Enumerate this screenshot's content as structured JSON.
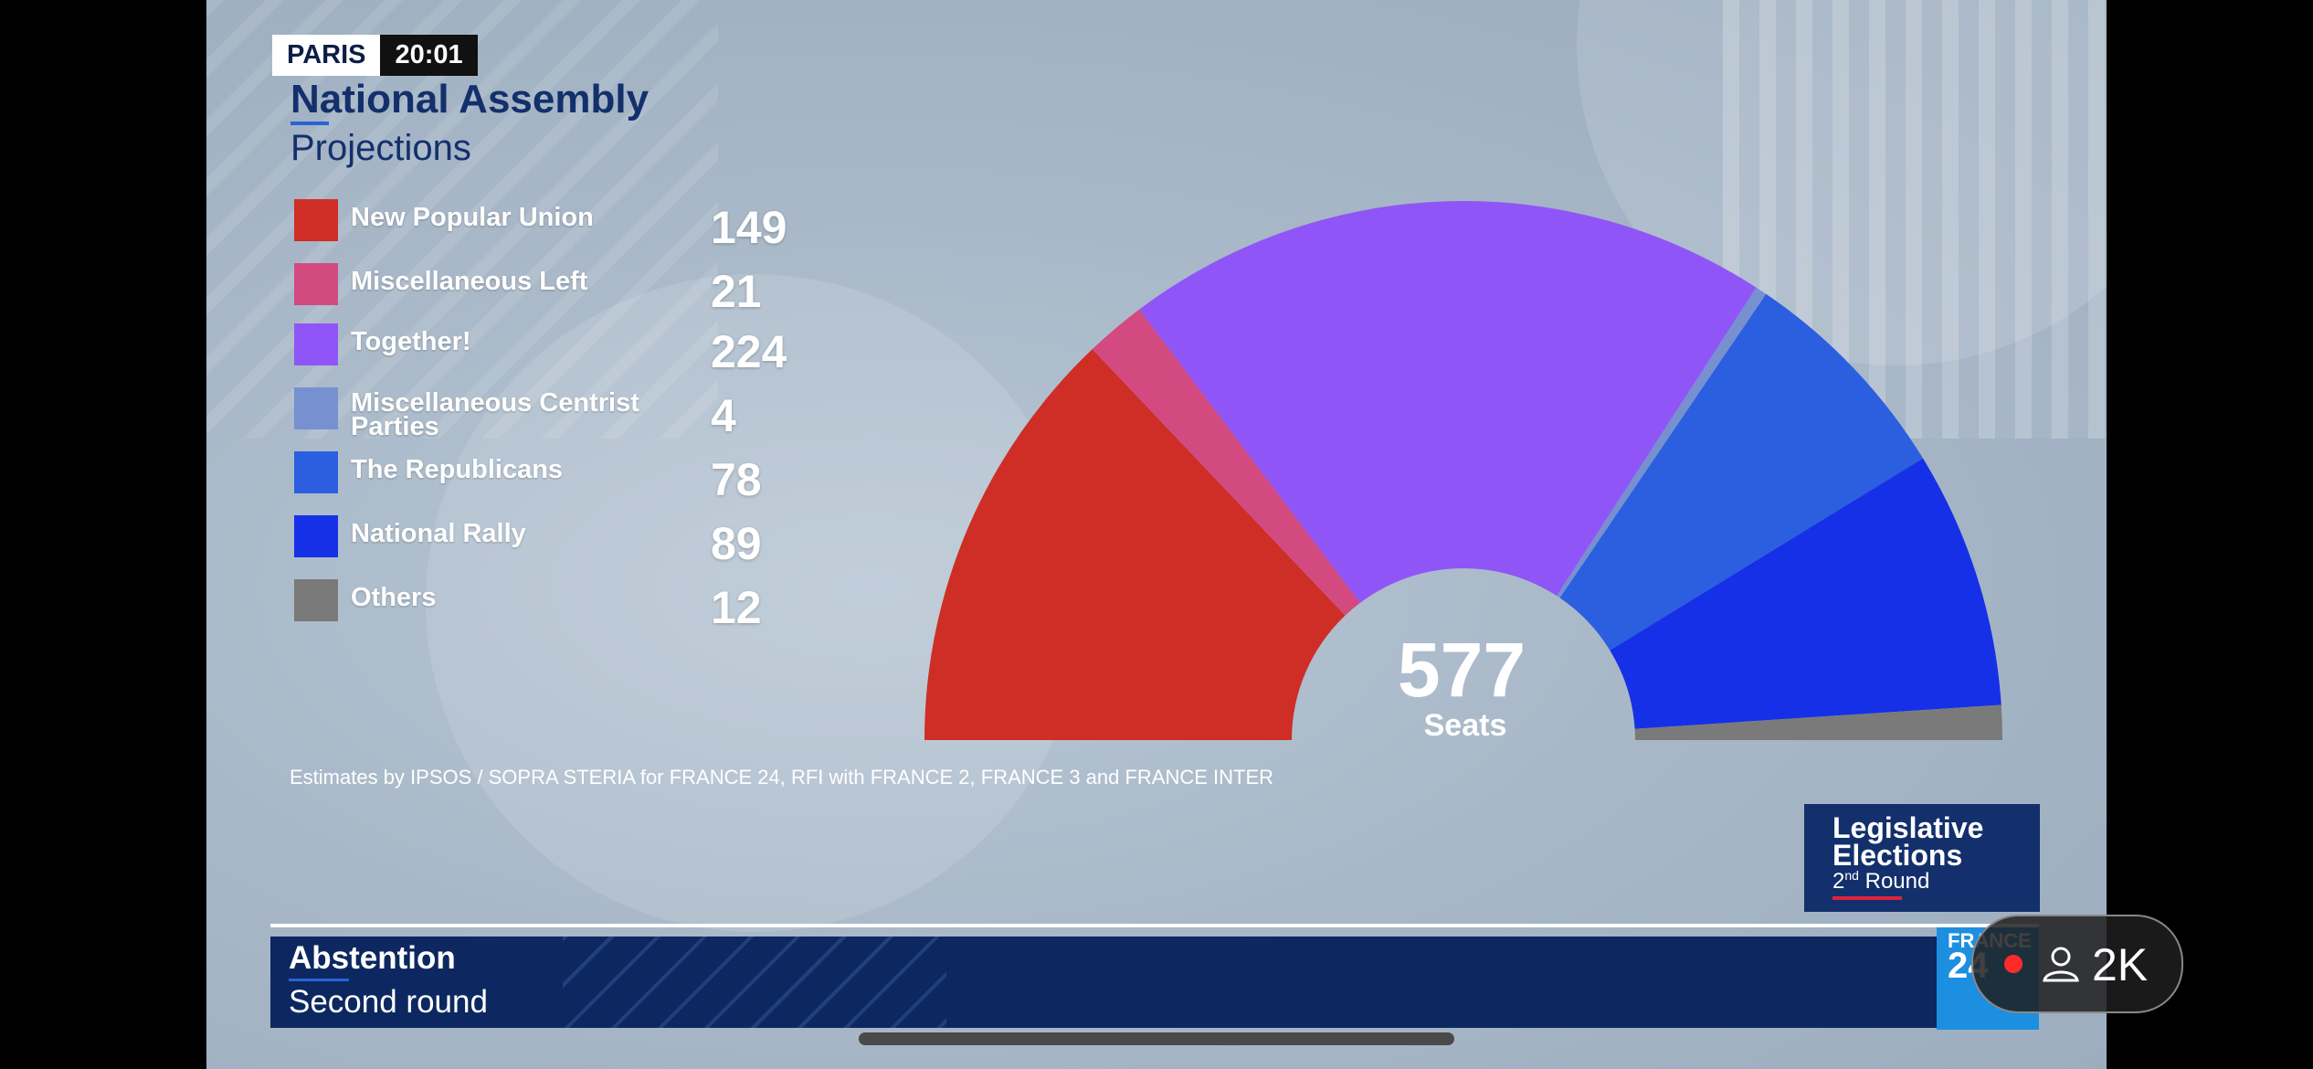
{
  "tag": {
    "city": "PARIS",
    "time": "20:01"
  },
  "header": {
    "title": "National Assembly",
    "subtitle": "Projections"
  },
  "chart_data": {
    "type": "pie",
    "shape": "semicircle",
    "title": "National Assembly",
    "subtitle": "Projections",
    "total_label": "577",
    "total_unit": "Seats",
    "series": [
      {
        "name": "New Popular Union",
        "value": 149,
        "color": "#ce2e26"
      },
      {
        "name": "Miscellaneous Left",
        "value": 21,
        "color": "#d24a80"
      },
      {
        "name": "Together!",
        "value": 224,
        "color": "#9055f7"
      },
      {
        "name": "Miscellaneous Centrist Parties",
        "value": 4,
        "color": "#7790cf"
      },
      {
        "name": "The Republicans",
        "value": 78,
        "color": "#2c5fe0"
      },
      {
        "name": "National Rally",
        "value": 89,
        "color": "#1530e6"
      },
      {
        "name": "Others",
        "value": 12,
        "color": "#7a7a7a"
      }
    ]
  },
  "source": "Estimates by IPSOS / SOPRA STERIA for FRANCE 24, RFI with FRANCE 2, FRANCE 3 and FRANCE INTER",
  "badge": {
    "line1": "Legislative",
    "line2": "Elections",
    "line3_num": "2",
    "line3_sup": "nd",
    "line3_rest": " Round",
    "accent": "#e0233a"
  },
  "ticker": {
    "heading": "Abstention",
    "sub": "Second round"
  },
  "logo": {
    "top": "FRANCE",
    "num": "24"
  },
  "live": {
    "count": "2K",
    "dot_color": "#ff2a2a"
  }
}
